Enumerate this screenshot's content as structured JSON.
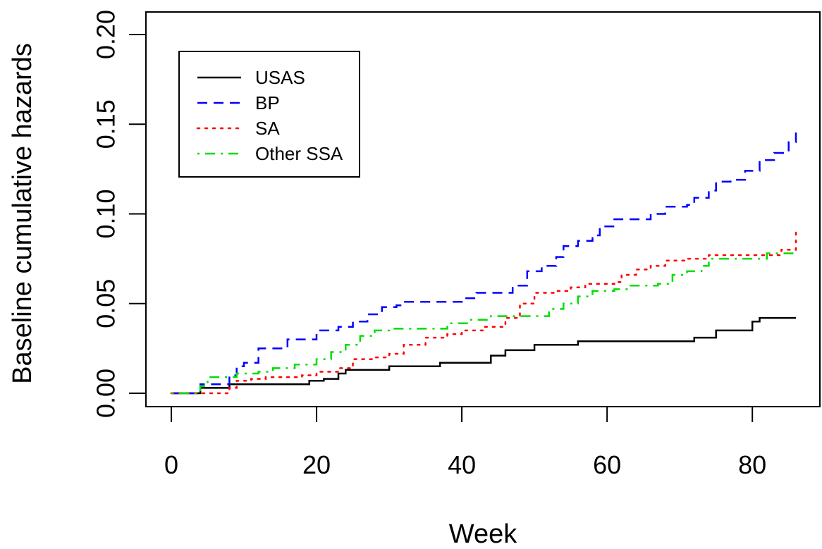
{
  "chart_data": {
    "type": "line",
    "title": "",
    "xlabel": "Week",
    "ylabel": "Baseline cumulative hazards",
    "xlim": [
      0,
      86
    ],
    "ylim": [
      0,
      0.2
    ],
    "xticks": [
      0,
      20,
      40,
      60,
      80
    ],
    "yticks": [
      0.0,
      0.05,
      0.1,
      0.15,
      0.2
    ],
    "xtick_labels": [
      "0",
      "20",
      "40",
      "60",
      "80"
    ],
    "ytick_labels": [
      "0.00",
      "0.05",
      "0.10",
      "0.15",
      "0.20"
    ],
    "grid": false,
    "legend_position": "top-left",
    "series": [
      {
        "name": "USAS",
        "color": "#000000",
        "dash": "solid",
        "points": [
          [
            0,
            0
          ],
          [
            3,
            0
          ],
          [
            4,
            0.003
          ],
          [
            7,
            0.003
          ],
          [
            8,
            0.005
          ],
          [
            18,
            0.005
          ],
          [
            19,
            0.007
          ],
          [
            20,
            0.007
          ],
          [
            21,
            0.008
          ],
          [
            22,
            0.008
          ],
          [
            23,
            0.011
          ],
          [
            24,
            0.013
          ],
          [
            29,
            0.013
          ],
          [
            30,
            0.015
          ],
          [
            36,
            0.015
          ],
          [
            37,
            0.017
          ],
          [
            42,
            0.017
          ],
          [
            44,
            0.021
          ],
          [
            46,
            0.024
          ],
          [
            48,
            0.024
          ],
          [
            50,
            0.027
          ],
          [
            55,
            0.027
          ],
          [
            56,
            0.029
          ],
          [
            71,
            0.029
          ],
          [
            72,
            0.031
          ],
          [
            73,
            0.031
          ],
          [
            75,
            0.035
          ],
          [
            78,
            0.035
          ],
          [
            80,
            0.04
          ],
          [
            81,
            0.042
          ],
          [
            86,
            0.042
          ]
        ]
      },
      {
        "name": "BP",
        "color": "#0000ff",
        "dash": "dashed",
        "points": [
          [
            0,
            0
          ],
          [
            3,
            0
          ],
          [
            4,
            0.005
          ],
          [
            7,
            0.005
          ],
          [
            8,
            0.01
          ],
          [
            9,
            0.015
          ],
          [
            10,
            0.017
          ],
          [
            11,
            0.017
          ],
          [
            12,
            0.025
          ],
          [
            15,
            0.025
          ],
          [
            16,
            0.03
          ],
          [
            19,
            0.03
          ],
          [
            20,
            0.035
          ],
          [
            22,
            0.035
          ],
          [
            23,
            0.037
          ],
          [
            25,
            0.04
          ],
          [
            27,
            0.044
          ],
          [
            28,
            0.044
          ],
          [
            29,
            0.048
          ],
          [
            31,
            0.049
          ],
          [
            32,
            0.051
          ],
          [
            38,
            0.051
          ],
          [
            40,
            0.053
          ],
          [
            42,
            0.056
          ],
          [
            45,
            0.056
          ],
          [
            47,
            0.06
          ],
          [
            49,
            0.068
          ],
          [
            51,
            0.071
          ],
          [
            53,
            0.076
          ],
          [
            54,
            0.082
          ],
          [
            56,
            0.085
          ],
          [
            58,
            0.088
          ],
          [
            59,
            0.093
          ],
          [
            61,
            0.097
          ],
          [
            64,
            0.097
          ],
          [
            66,
            0.1
          ],
          [
            68,
            0.104
          ],
          [
            71,
            0.105
          ],
          [
            72,
            0.109
          ],
          [
            74,
            0.113
          ],
          [
            75,
            0.118
          ],
          [
            77,
            0.119
          ],
          [
            79,
            0.124
          ],
          [
            81,
            0.13
          ],
          [
            83,
            0.134
          ],
          [
            85,
            0.14
          ],
          [
            86,
            0.148
          ]
        ]
      },
      {
        "name": "SA",
        "color": "#ff0000",
        "dash": "dotted",
        "points": [
          [
            0,
            0
          ],
          [
            7,
            0
          ],
          [
            8,
            0.003
          ],
          [
            9,
            0.007
          ],
          [
            11,
            0.008
          ],
          [
            13,
            0.009
          ],
          [
            17,
            0.009
          ],
          [
            18,
            0.01
          ],
          [
            20,
            0.012
          ],
          [
            23,
            0.014
          ],
          [
            25,
            0.019
          ],
          [
            28,
            0.02
          ],
          [
            30,
            0.022
          ],
          [
            32,
            0.027
          ],
          [
            35,
            0.031
          ],
          [
            38,
            0.033
          ],
          [
            40,
            0.035
          ],
          [
            43,
            0.037
          ],
          [
            46,
            0.042
          ],
          [
            48,
            0.05
          ],
          [
            50,
            0.056
          ],
          [
            53,
            0.057
          ],
          [
            55,
            0.059
          ],
          [
            57,
            0.061
          ],
          [
            61,
            0.062
          ],
          [
            62,
            0.066
          ],
          [
            64,
            0.069
          ],
          [
            66,
            0.071
          ],
          [
            68,
            0.074
          ],
          [
            71,
            0.075
          ],
          [
            74,
            0.077
          ],
          [
            81,
            0.077
          ],
          [
            84,
            0.08
          ],
          [
            86,
            0.092
          ]
        ]
      },
      {
        "name": "Other SSA",
        "color": "#00dd00",
        "dash": "dashdot",
        "points": [
          [
            0,
            0
          ],
          [
            3,
            0
          ],
          [
            4,
            0.004
          ],
          [
            5,
            0.009
          ],
          [
            8,
            0.009
          ],
          [
            9,
            0.011
          ],
          [
            12,
            0.012
          ],
          [
            14,
            0.014
          ],
          [
            17,
            0.016
          ],
          [
            20,
            0.019
          ],
          [
            22,
            0.023
          ],
          [
            24,
            0.027
          ],
          [
            26,
            0.032
          ],
          [
            28,
            0.035
          ],
          [
            30,
            0.036
          ],
          [
            36,
            0.036
          ],
          [
            38,
            0.039
          ],
          [
            41,
            0.041
          ],
          [
            44,
            0.043
          ],
          [
            49,
            0.043
          ],
          [
            52,
            0.047
          ],
          [
            54,
            0.05
          ],
          [
            56,
            0.054
          ],
          [
            58,
            0.057
          ],
          [
            61,
            0.058
          ],
          [
            63,
            0.06
          ],
          [
            67,
            0.061
          ],
          [
            69,
            0.066
          ],
          [
            71,
            0.068
          ],
          [
            73,
            0.071
          ],
          [
            74,
            0.075
          ],
          [
            80,
            0.075
          ],
          [
            82,
            0.078
          ],
          [
            86,
            0.078
          ]
        ]
      }
    ]
  }
}
